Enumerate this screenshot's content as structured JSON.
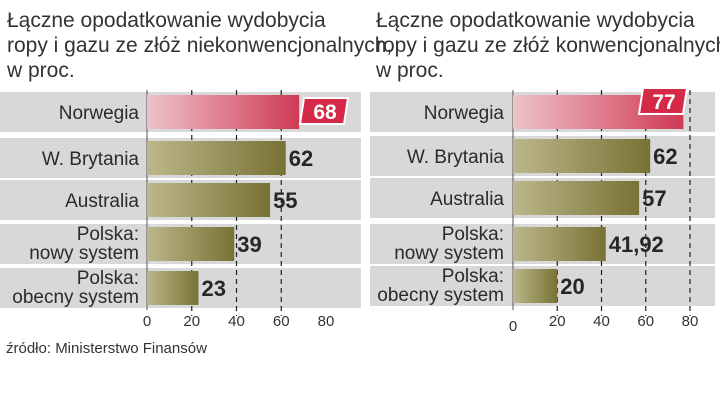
{
  "chart_data": [
    {
      "type": "bar",
      "title": [
        "Łączne opodatkowanie wydobycia",
        "ropy i gazu ze złóż niekonwencjonalnych,",
        "w proc."
      ],
      "categories": [
        [
          "Norwegia"
        ],
        [
          "W. Brytania"
        ],
        [
          "Australia"
        ],
        [
          "Polska:",
          "nowy system"
        ],
        [
          "Polska:",
          "obecny system"
        ]
      ],
      "values": [
        68,
        62,
        55,
        39,
        23
      ],
      "value_labels": [
        "68",
        "62",
        "55",
        "39",
        "23"
      ],
      "highlight_index": 0,
      "xlim": [
        0,
        80
      ],
      "xticks": [
        "0",
        "20",
        "40",
        "60",
        "80"
      ],
      "gridlines": [
        20,
        40,
        60
      ]
    },
    {
      "type": "bar",
      "title": [
        "Łączne opodatkowanie wydobycia",
        "ropy i gazu ze złóż konwencjonalnych,",
        "w proc."
      ],
      "categories": [
        [
          "Norwegia"
        ],
        [
          "W. Brytania"
        ],
        [
          "Australia"
        ],
        [
          "Polska:",
          "nowy system"
        ],
        [
          "Polska:",
          "obecny system"
        ]
      ],
      "values": [
        77,
        62,
        57,
        41.92,
        20
      ],
      "value_labels": [
        "77",
        "62",
        "57",
        "41,92",
        "20"
      ],
      "highlight_index": 0,
      "xlim": [
        0,
        80
      ],
      "xticks": [
        "0",
        "20",
        "40",
        "60",
        "80"
      ],
      "gridlines": [
        20,
        40,
        60,
        80
      ]
    }
  ],
  "source": "źródło: Ministerstwo Finansów",
  "colors": {
    "highlight_bar": "#cf3a55",
    "highlight_badge": "#d42a48",
    "bar_dark": "#787235",
    "bar_light": "#bcb78b",
    "band": "#d8d8d8",
    "grid": "#222222",
    "text": "#2b2b2b"
  }
}
